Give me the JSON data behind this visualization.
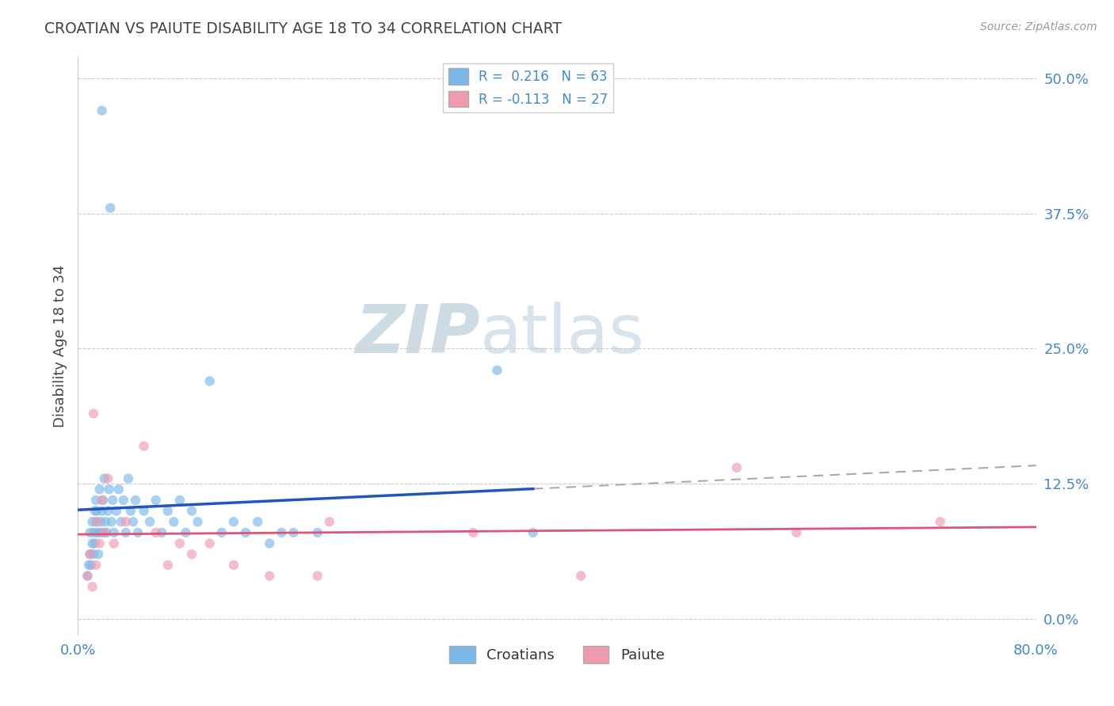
{
  "title": "CROATIAN VS PAIUTE DISABILITY AGE 18 TO 34 CORRELATION CHART",
  "source": "Source: ZipAtlas.com",
  "ylabel": "Disability Age 18 to 34",
  "xlim": [
    0.0,
    0.8
  ],
  "ylim": [
    -0.015,
    0.52
  ],
  "ytick_positions": [
    0.0,
    0.125,
    0.25,
    0.375,
    0.5
  ],
  "ytick_labels": [
    "0.0%",
    "12.5%",
    "25.0%",
    "37.5%",
    "50.0%"
  ],
  "xtick_positions": [
    0.0,
    0.8
  ],
  "xtick_labels": [
    "0.0%",
    "80.0%"
  ],
  "croatian_color": "#7ab8e8",
  "paiute_color": "#f09ab0",
  "trend_croatian_color": "#2255bb",
  "trend_paiute_color": "#dd5577",
  "background_color": "#ffffff",
  "grid_color": "#cccccc",
  "title_color": "#444444",
  "axis_label_color": "#444444",
  "tick_label_color": "#4488cc",
  "watermark_color_zip": "#c8d8e8",
  "watermark_color_atlas": "#b0c8e0",
  "figsize": [
    14.06,
    8.92
  ],
  "dpi": 100,
  "croatian_x": [
    0.008,
    0.009,
    0.01,
    0.01,
    0.011,
    0.012,
    0.012,
    0.013,
    0.013,
    0.014,
    0.014,
    0.015,
    0.015,
    0.016,
    0.016,
    0.017,
    0.018,
    0.018,
    0.019,
    0.02,
    0.02,
    0.021,
    0.021,
    0.022,
    0.023,
    0.024,
    0.025,
    0.026,
    0.027,
    0.028,
    0.029,
    0.03,
    0.032,
    0.034,
    0.036,
    0.038,
    0.04,
    0.042,
    0.044,
    0.046,
    0.048,
    0.05,
    0.055,
    0.06,
    0.065,
    0.07,
    0.075,
    0.08,
    0.085,
    0.09,
    0.095,
    0.1,
    0.11,
    0.12,
    0.13,
    0.14,
    0.15,
    0.16,
    0.17,
    0.18,
    0.2,
    0.35,
    0.38
  ],
  "croatian_y": [
    0.04,
    0.05,
    0.06,
    0.08,
    0.05,
    0.07,
    0.09,
    0.06,
    0.08,
    0.1,
    0.07,
    0.09,
    0.11,
    0.08,
    0.1,
    0.06,
    0.08,
    0.12,
    0.09,
    0.1,
    0.47,
    0.08,
    0.11,
    0.13,
    0.09,
    0.08,
    0.1,
    0.12,
    0.38,
    0.09,
    0.11,
    0.08,
    0.1,
    0.12,
    0.09,
    0.11,
    0.08,
    0.13,
    0.1,
    0.09,
    0.11,
    0.08,
    0.1,
    0.09,
    0.11,
    0.08,
    0.1,
    0.09,
    0.11,
    0.08,
    0.1,
    0.09,
    0.22,
    0.08,
    0.09,
    0.08,
    0.09,
    0.07,
    0.08,
    0.08,
    0.08,
    0.23,
    0.08
  ],
  "paiute_x": [
    0.008,
    0.01,
    0.012,
    0.013,
    0.015,
    0.016,
    0.018,
    0.02,
    0.022,
    0.025,
    0.03,
    0.04,
    0.055,
    0.065,
    0.075,
    0.085,
    0.095,
    0.11,
    0.13,
    0.16,
    0.2,
    0.21,
    0.33,
    0.42,
    0.55,
    0.6,
    0.72
  ],
  "paiute_y": [
    0.04,
    0.06,
    0.03,
    0.19,
    0.05,
    0.09,
    0.07,
    0.11,
    0.08,
    0.13,
    0.07,
    0.09,
    0.16,
    0.08,
    0.05,
    0.07,
    0.06,
    0.07,
    0.05,
    0.04,
    0.04,
    0.09,
    0.08,
    0.04,
    0.14,
    0.08,
    0.09
  ]
}
